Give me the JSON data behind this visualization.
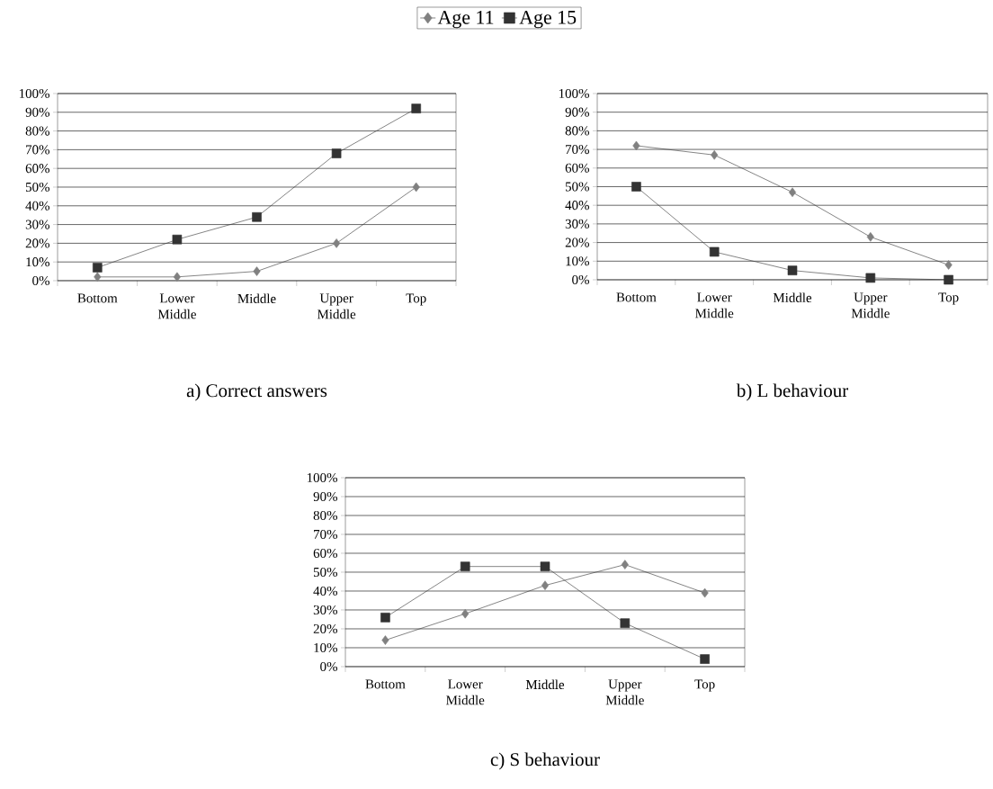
{
  "chart_data": [
    {
      "type": "line",
      "title": "a) Correct answers",
      "categories": [
        "Bottom",
        "Lower Middle",
        "Middle",
        "Upper Middle",
        "Top"
      ],
      "ylim": [
        0,
        100
      ],
      "yticks": [
        {
          "value": 0,
          "label": "0%"
        },
        {
          "value": 10,
          "label": "10%"
        },
        {
          "value": 20,
          "label": "20%"
        },
        {
          "value": 30,
          "label": "30%"
        },
        {
          "value": 40,
          "label": "40%"
        },
        {
          "value": 50,
          "label": "50%"
        },
        {
          "value": 60,
          "label": "60%"
        },
        {
          "value": 70,
          "label": "70%"
        },
        {
          "value": 80,
          "label": "80%"
        },
        {
          "value": 90,
          "label": "90%"
        },
        {
          "value": 100,
          "label": "100%"
        }
      ],
      "grid": "y",
      "legend": "top",
      "series": [
        {
          "name": "Age 11",
          "color": "#808080",
          "marker": "diamond",
          "values": [
            2,
            2,
            5,
            20,
            50
          ]
        },
        {
          "name": "Age 15",
          "color": "#333333",
          "marker": "square",
          "values": [
            7,
            22,
            34,
            68,
            92
          ]
        }
      ]
    },
    {
      "type": "line",
      "title": "b) L behaviour",
      "categories": [
        "Bottom",
        "Lower Middle",
        "Middle",
        "Upper Middle",
        "Top"
      ],
      "ylim": [
        0,
        100
      ],
      "yticks": [
        {
          "value": 0,
          "label": "0%"
        },
        {
          "value": 10,
          "label": "10%"
        },
        {
          "value": 20,
          "label": "20%"
        },
        {
          "value": 30,
          "label": "30%"
        },
        {
          "value": 40,
          "label": "40%"
        },
        {
          "value": 50,
          "label": "50%"
        },
        {
          "value": 60,
          "label": "60%"
        },
        {
          "value": 70,
          "label": "70%"
        },
        {
          "value": 80,
          "label": "80%"
        },
        {
          "value": 90,
          "label": "90%"
        },
        {
          "value": 100,
          "label": "100%"
        }
      ],
      "grid": "y",
      "series": [
        {
          "color": "#808080",
          "marker": "diamond",
          "values": [
            72,
            67,
            47,
            23,
            8
          ]
        },
        {
          "color": "#333333",
          "marker": "square",
          "values": [
            50,
            15,
            5,
            1,
            0
          ]
        }
      ]
    },
    {
      "type": "line",
      "title": "c) S behaviour",
      "categories": [
        "Bottom",
        "Lower Middle",
        "Middle",
        "Upper Middle",
        "Top"
      ],
      "ylim": [
        0,
        100
      ],
      "yticks": [
        {
          "value": 0,
          "label": "0%"
        },
        {
          "value": 10,
          "label": "10%"
        },
        {
          "value": 20,
          "label": "20%"
        },
        {
          "value": 30,
          "label": "30%"
        },
        {
          "value": 40,
          "label": "40%"
        },
        {
          "value": 50,
          "label": "50%"
        },
        {
          "value": 60,
          "label": "60%"
        },
        {
          "value": 70,
          "label": "70%"
        },
        {
          "value": 80,
          "label": "80%"
        },
        {
          "value": 90,
          "label": "90%"
        },
        {
          "value": 100,
          "label": "100%"
        }
      ],
      "grid": "y",
      "series": [
        {
          "color": "#808080",
          "marker": "diamond",
          "values": [
            14,
            28,
            43,
            54,
            39
          ]
        },
        {
          "color": "#333333",
          "marker": "square",
          "values": [
            26,
            53,
            53,
            23,
            4
          ]
        }
      ]
    }
  ]
}
